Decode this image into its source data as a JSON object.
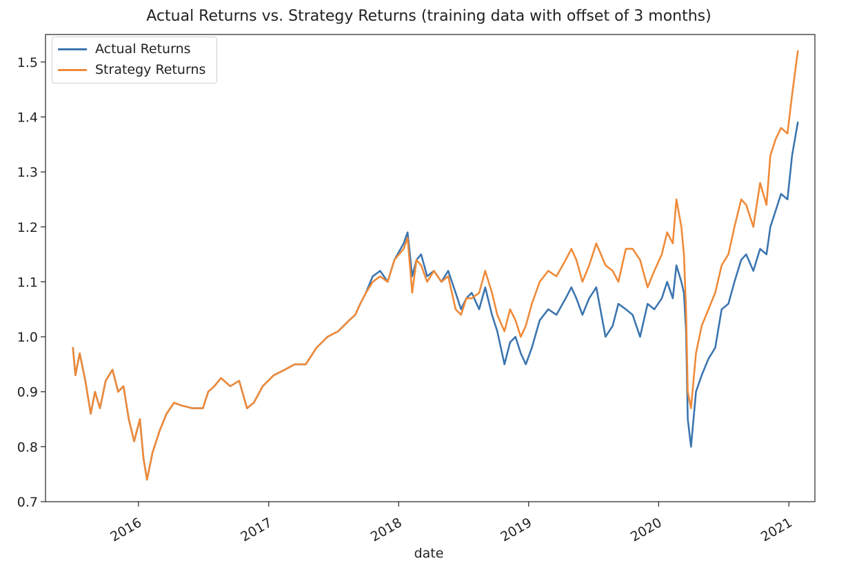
{
  "chart_data": {
    "type": "line",
    "title": "Actual Returns vs. Strategy Returns (training data with offset of 3 months)",
    "xlabel": "date",
    "ylabel": "",
    "x_range": [
      "2015-04-15",
      "2021-03-15"
    ],
    "ylim": [
      0.7,
      1.55
    ],
    "y_ticks": [
      0.7,
      0.8,
      0.9,
      1.0,
      1.1,
      1.2,
      1.3,
      1.4,
      1.5
    ],
    "y_tick_labels": [
      "0.7",
      "0.8",
      "0.9",
      "1.0",
      "1.1",
      "1.2",
      "1.3",
      "1.4",
      "1.5"
    ],
    "x_ticks": [
      "2016-01-01",
      "2017-01-01",
      "2018-01-01",
      "2019-01-01",
      "2020-01-01",
      "2021-01-01"
    ],
    "x_tick_labels": [
      "2016",
      "2017",
      "2018",
      "2019",
      "2020",
      "2021"
    ],
    "grid": false,
    "legend_position": "top-left",
    "series": [
      {
        "name": "Actual Returns",
        "color": "#3b75af",
        "x": [
          "2015-07-01",
          "2015-07-08",
          "2015-07-20",
          "2015-08-05",
          "2015-08-20",
          "2015-09-01",
          "2015-09-15",
          "2015-10-01",
          "2015-10-20",
          "2015-11-05",
          "2015-11-20",
          "2015-12-05",
          "2015-12-20",
          "2016-01-05",
          "2016-01-15",
          "2016-01-25",
          "2016-02-10",
          "2016-03-01",
          "2016-03-20",
          "2016-04-10",
          "2016-05-01",
          "2016-06-01",
          "2016-06-30",
          "2016-07-15",
          "2016-08-01",
          "2016-08-20",
          "2016-09-15",
          "2016-10-10",
          "2016-11-01",
          "2016-11-20",
          "2016-12-15",
          "2017-01-15",
          "2017-02-15",
          "2017-03-15",
          "2017-04-15",
          "2017-05-15",
          "2017-06-15",
          "2017-07-15",
          "2017-08-15",
          "2017-09-01",
          "2017-09-15",
          "2017-10-01",
          "2017-10-20",
          "2017-11-10",
          "2017-12-01",
          "2017-12-20",
          "2018-01-15",
          "2018-01-26",
          "2018-02-08",
          "2018-02-20",
          "2018-03-05",
          "2018-03-22",
          "2018-04-10",
          "2018-05-01",
          "2018-05-20",
          "2018-06-10",
          "2018-06-25",
          "2018-07-10",
          "2018-07-25",
          "2018-08-15",
          "2018-09-01",
          "2018-09-20",
          "2018-10-05",
          "2018-10-25",
          "2018-11-10",
          "2018-11-25",
          "2018-12-10",
          "2018-12-24",
          "2019-01-10",
          "2019-02-01",
          "2019-02-25",
          "2019-03-20",
          "2019-04-15",
          "2019-05-01",
          "2019-05-15",
          "2019-06-01",
          "2019-06-20",
          "2019-07-10",
          "2019-08-05",
          "2019-08-25",
          "2019-09-10",
          "2019-10-01",
          "2019-10-20",
          "2019-11-10",
          "2019-12-01",
          "2019-12-20",
          "2020-01-10",
          "2020-01-25",
          "2020-02-10",
          "2020-02-20",
          "2020-03-05",
          "2020-03-12",
          "2020-03-18",
          "2020-03-23",
          "2020-04-01",
          "2020-04-15",
          "2020-05-01",
          "2020-05-20",
          "2020-06-08",
          "2020-06-26",
          "2020-07-15",
          "2020-08-01",
          "2020-08-20",
          "2020-09-03",
          "2020-09-23",
          "2020-10-12",
          "2020-10-30",
          "2020-11-10",
          "2020-11-25",
          "2020-12-10",
          "2020-12-28",
          "2021-01-10",
          "2021-01-26"
        ],
        "values": [
          0.98,
          0.93,
          0.97,
          0.92,
          0.86,
          0.9,
          0.87,
          0.92,
          0.94,
          0.9,
          0.91,
          0.85,
          0.81,
          0.85,
          0.78,
          0.74,
          0.79,
          0.83,
          0.86,
          0.88,
          0.875,
          0.87,
          0.87,
          0.9,
          0.91,
          0.925,
          0.91,
          0.92,
          0.87,
          0.88,
          0.91,
          0.93,
          0.94,
          0.95,
          0.95,
          0.98,
          1.0,
          1.01,
          1.03,
          1.04,
          1.06,
          1.08,
          1.11,
          1.12,
          1.1,
          1.14,
          1.17,
          1.19,
          1.11,
          1.14,
          1.15,
          1.11,
          1.12,
          1.1,
          1.12,
          1.08,
          1.05,
          1.07,
          1.08,
          1.05,
          1.09,
          1.04,
          1.01,
          0.95,
          0.99,
          1.0,
          0.97,
          0.95,
          0.98,
          1.03,
          1.05,
          1.04,
          1.07,
          1.09,
          1.07,
          1.04,
          1.07,
          1.09,
          1.0,
          1.02,
          1.06,
          1.05,
          1.04,
          1.0,
          1.06,
          1.05,
          1.07,
          1.1,
          1.07,
          1.13,
          1.1,
          1.08,
          1.01,
          0.85,
          0.8,
          0.9,
          0.93,
          0.96,
          0.98,
          1.05,
          1.06,
          1.1,
          1.14,
          1.15,
          1.12,
          1.16,
          1.15,
          1.2,
          1.23,
          1.26,
          1.25,
          1.33,
          1.39
        ]
      },
      {
        "name": "Strategy Returns",
        "color": "#ef8a38",
        "x": [
          "2015-07-01",
          "2015-07-08",
          "2015-07-20",
          "2015-08-05",
          "2015-08-20",
          "2015-09-01",
          "2015-09-15",
          "2015-10-01",
          "2015-10-20",
          "2015-11-05",
          "2015-11-20",
          "2015-12-05",
          "2015-12-20",
          "2016-01-05",
          "2016-01-15",
          "2016-01-25",
          "2016-02-10",
          "2016-03-01",
          "2016-03-20",
          "2016-04-10",
          "2016-05-01",
          "2016-06-01",
          "2016-06-30",
          "2016-07-15",
          "2016-08-01",
          "2016-08-20",
          "2016-09-15",
          "2016-10-10",
          "2016-11-01",
          "2016-11-20",
          "2016-12-15",
          "2017-01-15",
          "2017-02-15",
          "2017-03-15",
          "2017-04-15",
          "2017-05-15",
          "2017-06-15",
          "2017-07-15",
          "2017-08-15",
          "2017-09-01",
          "2017-09-15",
          "2017-10-01",
          "2017-10-20",
          "2017-11-10",
          "2017-12-01",
          "2017-12-20",
          "2018-01-15",
          "2018-01-26",
          "2018-02-08",
          "2018-02-20",
          "2018-03-05",
          "2018-03-22",
          "2018-04-10",
          "2018-05-01",
          "2018-05-20",
          "2018-06-10",
          "2018-06-25",
          "2018-07-10",
          "2018-07-25",
          "2018-08-15",
          "2018-09-01",
          "2018-09-20",
          "2018-10-05",
          "2018-10-25",
          "2018-11-10",
          "2018-11-25",
          "2018-12-10",
          "2018-12-24",
          "2019-01-10",
          "2019-02-01",
          "2019-02-25",
          "2019-03-20",
          "2019-04-15",
          "2019-05-01",
          "2019-05-15",
          "2019-06-01",
          "2019-06-20",
          "2019-07-10",
          "2019-08-05",
          "2019-08-25",
          "2019-09-10",
          "2019-10-01",
          "2019-10-20",
          "2019-11-10",
          "2019-12-01",
          "2019-12-20",
          "2020-01-10",
          "2020-01-25",
          "2020-02-10",
          "2020-02-20",
          "2020-03-05",
          "2020-03-12",
          "2020-03-18",
          "2020-03-23",
          "2020-04-01",
          "2020-04-15",
          "2020-05-01",
          "2020-05-20",
          "2020-06-08",
          "2020-06-26",
          "2020-07-15",
          "2020-08-01",
          "2020-08-20",
          "2020-09-03",
          "2020-09-23",
          "2020-10-12",
          "2020-10-30",
          "2020-11-10",
          "2020-11-25",
          "2020-12-10",
          "2020-12-28",
          "2021-01-10",
          "2021-01-26"
        ],
        "values": [
          0.98,
          0.93,
          0.97,
          0.92,
          0.86,
          0.9,
          0.87,
          0.92,
          0.94,
          0.9,
          0.91,
          0.85,
          0.81,
          0.85,
          0.78,
          0.74,
          0.79,
          0.83,
          0.86,
          0.88,
          0.875,
          0.87,
          0.87,
          0.9,
          0.91,
          0.925,
          0.91,
          0.92,
          0.87,
          0.88,
          0.91,
          0.93,
          0.94,
          0.95,
          0.95,
          0.98,
          1.0,
          1.01,
          1.03,
          1.04,
          1.06,
          1.08,
          1.1,
          1.11,
          1.1,
          1.14,
          1.16,
          1.18,
          1.08,
          1.14,
          1.13,
          1.1,
          1.12,
          1.1,
          1.11,
          1.05,
          1.04,
          1.07,
          1.07,
          1.08,
          1.12,
          1.08,
          1.04,
          1.01,
          1.05,
          1.03,
          1.0,
          1.02,
          1.06,
          1.1,
          1.12,
          1.11,
          1.14,
          1.16,
          1.14,
          1.1,
          1.13,
          1.17,
          1.13,
          1.12,
          1.1,
          1.16,
          1.16,
          1.14,
          1.09,
          1.12,
          1.15,
          1.19,
          1.17,
          1.25,
          1.2,
          1.15,
          1.05,
          0.9,
          0.87,
          0.97,
          1.02,
          1.05,
          1.08,
          1.13,
          1.15,
          1.2,
          1.25,
          1.24,
          1.2,
          1.28,
          1.24,
          1.33,
          1.36,
          1.38,
          1.37,
          1.44,
          1.52
        ]
      }
    ]
  }
}
